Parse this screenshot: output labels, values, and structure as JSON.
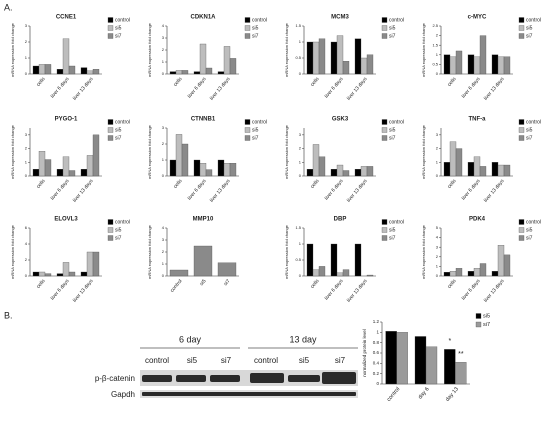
{
  "panels": {
    "a": "A.",
    "b": "B."
  },
  "blot": {
    "groups": [
      "6 day",
      "13 day"
    ],
    "lanes": [
      "control",
      "si5",
      "si7",
      "control",
      "si5",
      "si7"
    ],
    "rows": [
      "p-β-catenin",
      "Gapdh"
    ]
  },
  "chart_data": [
    {
      "type": "bar",
      "title": "CCNE1",
      "ylabel": "mRNA expression fold change",
      "categories": [
        "cells",
        "liver 6 days",
        "liver 13 days"
      ],
      "series": [
        {
          "name": "control",
          "color": "#000000",
          "values": [
            0.5,
            0.3,
            0.4
          ]
        },
        {
          "name": "si5",
          "color": "#bdbdbd",
          "values": [
            0.6,
            2.2,
            0.2
          ]
        },
        {
          "name": "si7",
          "color": "#8a8a8a",
          "values": [
            0.6,
            0.5,
            0.3
          ]
        }
      ],
      "ylim": [
        0,
        3
      ],
      "yticks": [
        0,
        1,
        2,
        3
      ],
      "legend": "right"
    },
    {
      "type": "bar",
      "title": "CDKN1A",
      "ylabel": "mRNA expression fold change",
      "categories": [
        "cells",
        "liver 6 days",
        "liver 13 days"
      ],
      "series": [
        {
          "name": "control",
          "color": "#000000",
          "values": [
            0.2,
            0.2,
            0.2
          ]
        },
        {
          "name": "si5",
          "color": "#bdbdbd",
          "values": [
            0.3,
            2.5,
            2.3
          ]
        },
        {
          "name": "si7",
          "color": "#8a8a8a",
          "values": [
            0.3,
            0.5,
            1.3
          ]
        }
      ],
      "ylim": [
        0,
        4
      ],
      "yticks": [
        0,
        1,
        2,
        3,
        4
      ],
      "legend": "right"
    },
    {
      "type": "bar",
      "title": "MCM3",
      "ylabel": "mRNA expression fold change",
      "categories": [
        "cells",
        "liver 6 days",
        "liver 13 days"
      ],
      "series": [
        {
          "name": "control",
          "color": "#000000",
          "values": [
            1.0,
            1.0,
            1.1
          ]
        },
        {
          "name": "si5",
          "color": "#bdbdbd",
          "values": [
            1.0,
            1.2,
            0.5
          ]
        },
        {
          "name": "si7",
          "color": "#8a8a8a",
          "values": [
            1.1,
            0.4,
            0.6
          ]
        }
      ],
      "ylim": [
        0,
        1.5
      ],
      "yticks": [
        0,
        0.5,
        1,
        1.5
      ],
      "legend": "right"
    },
    {
      "type": "bar",
      "title": "c-MYC",
      "ylabel": "mRNA expression fold change",
      "categories": [
        "cells",
        "liver 6 days",
        "liver 13 days"
      ],
      "series": [
        {
          "name": "control",
          "color": "#000000",
          "values": [
            1.0,
            1.0,
            1.0
          ]
        },
        {
          "name": "si5",
          "color": "#bdbdbd",
          "values": [
            0.9,
            0.9,
            0.9
          ]
        },
        {
          "name": "si7",
          "color": "#8a8a8a",
          "values": [
            1.2,
            2.0,
            0.9
          ]
        }
      ],
      "ylim": [
        0,
        2.5
      ],
      "yticks": [
        0,
        0.5,
        1,
        1.5,
        2,
        2.5
      ],
      "legend": "right"
    },
    {
      "type": "bar",
      "title": "PYGO-1",
      "ylabel": "mRNA expression fold change",
      "categories": [
        "cells",
        "liver 6 days",
        "liver 13 days"
      ],
      "series": [
        {
          "name": "control",
          "color": "#000000",
          "values": [
            0.5,
            0.5,
            0.5
          ]
        },
        {
          "name": "si5",
          "color": "#bdbdbd",
          "values": [
            1.8,
            1.4,
            1.5
          ]
        },
        {
          "name": "si7",
          "color": "#8a8a8a",
          "values": [
            1.2,
            0.4,
            3.0
          ]
        }
      ],
      "ylim": [
        0,
        3.5
      ],
      "yticks": [
        0,
        1,
        2,
        3
      ],
      "legend": "right"
    },
    {
      "type": "bar",
      "title": "CTNNB1",
      "ylabel": "mRNA expression fold change",
      "categories": [
        "cells",
        "liver 6 days",
        "liver 13 days"
      ],
      "series": [
        {
          "name": "control",
          "color": "#000000",
          "values": [
            1.0,
            1.0,
            1.0
          ]
        },
        {
          "name": "si5",
          "color": "#bdbdbd",
          "values": [
            2.6,
            0.8,
            0.8
          ]
        },
        {
          "name": "si7",
          "color": "#8a8a8a",
          "values": [
            2.0,
            0.4,
            0.8
          ]
        }
      ],
      "ylim": [
        0,
        3
      ],
      "yticks": [
        0,
        1,
        2,
        3
      ],
      "legend": "right"
    },
    {
      "type": "bar",
      "title": "GSK3",
      "ylabel": "mRNA expression fold change",
      "categories": [
        "cells",
        "liver 6 days",
        "liver 13 days"
      ],
      "series": [
        {
          "name": "control",
          "color": "#000000",
          "values": [
            0.5,
            0.5,
            0.5
          ]
        },
        {
          "name": "si5",
          "color": "#bdbdbd",
          "values": [
            2.3,
            0.8,
            0.7
          ]
        },
        {
          "name": "si7",
          "color": "#8a8a8a",
          "values": [
            1.4,
            0.4,
            0.7
          ]
        }
      ],
      "ylim": [
        0,
        3.5
      ],
      "yticks": [
        0,
        1,
        2,
        3
      ],
      "legend": "right"
    },
    {
      "type": "bar",
      "title": "TNF-a",
      "ylabel": "mRNA expression fold change",
      "categories": [
        "cells",
        "liver 6 days",
        "liver 13 days"
      ],
      "series": [
        {
          "name": "control",
          "color": "#000000",
          "values": [
            1.0,
            1.0,
            1.0
          ]
        },
        {
          "name": "si5",
          "color": "#bdbdbd",
          "values": [
            2.5,
            1.4,
            0.8
          ]
        },
        {
          "name": "si7",
          "color": "#8a8a8a",
          "values": [
            2.0,
            0.7,
            0.8
          ]
        }
      ],
      "ylim": [
        0,
        3.5
      ],
      "yticks": [
        0,
        1,
        2,
        3
      ],
      "legend": "right"
    },
    {
      "type": "bar",
      "title": "ELOVL3",
      "ylabel": "mRNA expression fold change",
      "categories": [
        "cells",
        "liver 6 days",
        "liver 13 days"
      ],
      "series": [
        {
          "name": "control",
          "color": "#000000",
          "values": [
            0.5,
            0.3,
            0.5
          ]
        },
        {
          "name": "si5",
          "color": "#bdbdbd",
          "values": [
            0.5,
            1.7,
            3.0
          ]
        },
        {
          "name": "si7",
          "color": "#8a8a8a",
          "values": [
            0.3,
            0.5,
            3.0
          ]
        }
      ],
      "ylim": [
        0,
        6
      ],
      "yticks": [
        0,
        2,
        4,
        6
      ],
      "legend": "right"
    },
    {
      "type": "bar",
      "title": "MMP10",
      "ylabel": "mRNA expression fold change",
      "categories": [
        "control",
        "si5",
        "si7"
      ],
      "values": [
        0.5,
        2.5,
        1.1
      ],
      "color": "#8a8a8a",
      "ylim": [
        0,
        4
      ],
      "yticks": [
        0,
        1,
        2,
        3,
        4
      ]
    },
    {
      "type": "bar",
      "title": "DBP",
      "ylabel": "mRNA expression fold change",
      "categories": [
        "cells",
        "liver 6 days",
        "liver 13 days"
      ],
      "series": [
        {
          "name": "control",
          "color": "#000000",
          "values": [
            1.0,
            1.0,
            1.0
          ]
        },
        {
          "name": "si5",
          "color": "#bdbdbd",
          "values": [
            0.2,
            0.1,
            0.0
          ]
        },
        {
          "name": "si7",
          "color": "#8a8a8a",
          "values": [
            0.3,
            0.2,
            0.03
          ]
        }
      ],
      "ylim": [
        0,
        1.5
      ],
      "yticks": [
        0,
        0.5,
        1,
        1.5
      ],
      "legend": "right"
    },
    {
      "type": "bar",
      "title": "PDK4",
      "ylabel": "mRNA expression fold change",
      "categories": [
        "cells",
        "liver 6 days",
        "liver 13 days"
      ],
      "series": [
        {
          "name": "control",
          "color": "#000000",
          "values": [
            0.4,
            0.5,
            0.5
          ]
        },
        {
          "name": "si5",
          "color": "#bdbdbd",
          "values": [
            0.5,
            0.8,
            3.2
          ]
        },
        {
          "name": "si7",
          "color": "#8a8a8a",
          "values": [
            0.8,
            1.3,
            2.2
          ]
        }
      ],
      "ylim": [
        0,
        5
      ],
      "yticks": [
        0,
        1,
        2,
        3,
        4,
        5
      ],
      "legend": "right"
    },
    {
      "type": "bar",
      "ylabel": "normalized protein level",
      "categories": [
        "control",
        "day 6",
        "day 13"
      ],
      "series": [
        {
          "name": "si5",
          "color": "#000000",
          "values": [
            1.02,
            0.92,
            0.67
          ]
        },
        {
          "name": "si7",
          "color": "#9a9a9a",
          "values": [
            1.0,
            0.72,
            0.42
          ]
        }
      ],
      "ylim": [
        0,
        1.2
      ],
      "yticks": [
        0,
        0.2,
        0.4,
        0.6,
        0.8,
        1,
        1.2
      ],
      "legend": "right",
      "annotations": [
        "*",
        "**"
      ]
    }
  ]
}
